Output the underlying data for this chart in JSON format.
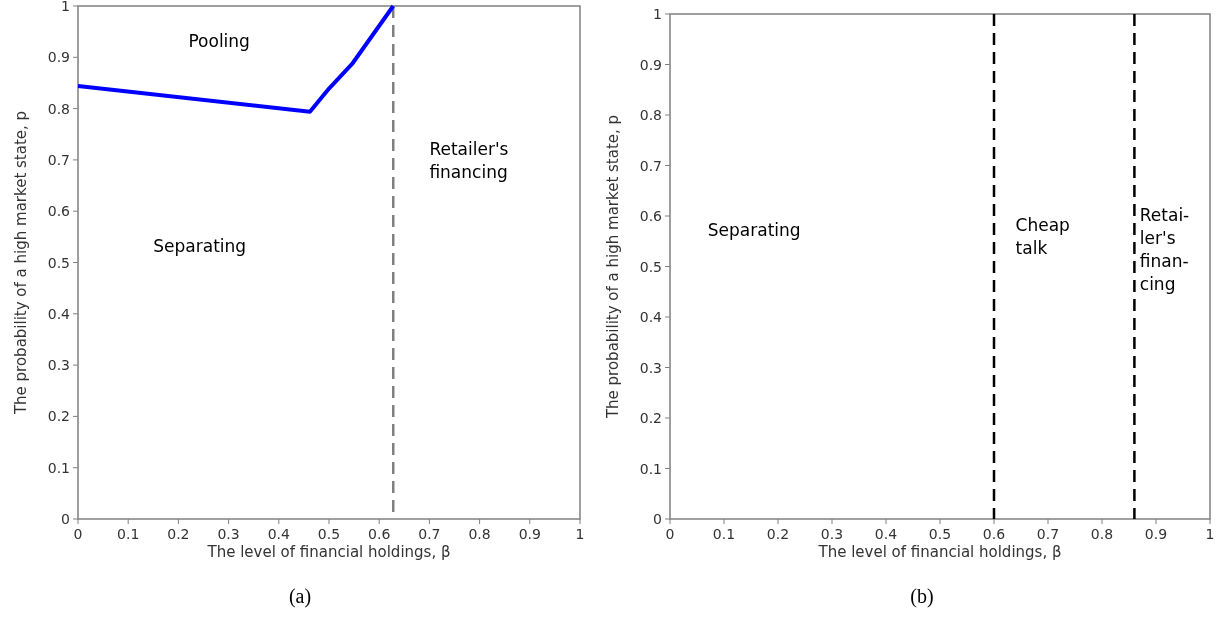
{
  "chart_data": [
    {
      "type": "line",
      "xlabel": "The level of financial holdings, β",
      "ylabel": "The probability of a high market state, p",
      "xlim": [
        0,
        1
      ],
      "ylim": [
        0,
        1
      ],
      "xticks": [
        0,
        0.1,
        0.2,
        0.3,
        0.4,
        0.5,
        0.6,
        0.7,
        0.8,
        0.9,
        1
      ],
      "yticks": [
        0,
        0.1,
        0.2,
        0.3,
        0.4,
        0.5,
        0.6,
        0.7,
        0.8,
        0.9,
        1
      ],
      "grid": false,
      "marker": "none",
      "series": [
        {
          "color": "#0000ff",
          "x": [
            0,
            0.462,
            0.5,
            0.546,
            0.628
          ],
          "values": [
            0.844,
            0.794,
            0.839,
            0.887,
            1.0
          ]
        }
      ],
      "ref_lines": [
        {
          "axis": "x",
          "value": 0.628,
          "color": "#808080",
          "line_style": "dashed"
        }
      ],
      "annotations": [
        "Pooling",
        "Separating",
        "Retailer's\nfinancing",
        "(a)"
      ]
    },
    {
      "type": "line",
      "xlabel": "The level of financial holdings, β",
      "ylabel": "The probability of a high market state, p",
      "xlim": [
        0,
        1
      ],
      "ylim": [
        0,
        1
      ],
      "xticks": [
        0,
        0.1,
        0.2,
        0.3,
        0.4,
        0.5,
        0.6,
        0.7,
        0.8,
        0.9,
        1
      ],
      "yticks": [
        0,
        0.1,
        0.2,
        0.3,
        0.4,
        0.5,
        0.6,
        0.7,
        0.8,
        0.9,
        1
      ],
      "grid": false,
      "ref_lines": [
        {
          "axis": "x",
          "value": 0.6,
          "color": "#000000",
          "line_style": "dashed"
        },
        {
          "axis": "x",
          "value": 0.86,
          "color": "#000000",
          "line_style": "dashed"
        }
      ],
      "annotations": [
        "Separating",
        "Cheap\ntalk",
        "Retai-\nler's\nfinan-\ncing",
        "(b)"
      ]
    }
  ]
}
